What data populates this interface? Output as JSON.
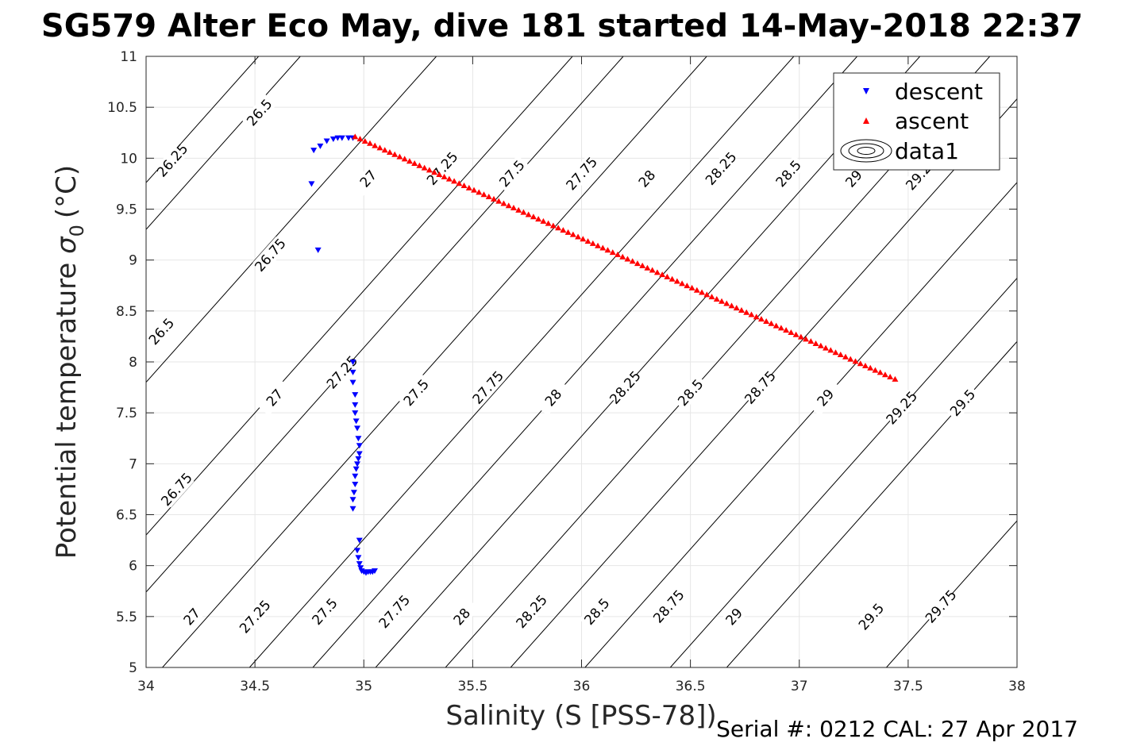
{
  "chart_data": {
    "type": "scatter",
    "title": "SG579 Alter Eco May, dive 181 started 14-May-2018 22:37",
    "xlabel": "Salinity (S [PSS-78])",
    "ylabel": "Potential temperature",
    "ylabel_symbol": "σ",
    "ylabel_subscript": "0",
    "ylabel_unit": "(°C)",
    "xlim": [
      34,
      38
    ],
    "ylim": [
      5,
      11
    ],
    "x_ticks": [
      "34",
      "34.5",
      "35",
      "35.5",
      "36",
      "36.5",
      "37",
      "37.5",
      "38"
    ],
    "y_ticks": [
      "5",
      "5.5",
      "6",
      "6.5",
      "7",
      "7.5",
      "8",
      "8.5",
      "9",
      "9.5",
      "10",
      "10.5",
      "11"
    ],
    "grid": true,
    "legend_position": "top-right",
    "legend": [
      "descent",
      "ascent",
      "data1"
    ],
    "footer": "Serial #: 0212  CAL: 27 Apr 2017",
    "colors": {
      "descent": "#0000ff",
      "ascent": "#ff0000",
      "contour": "#000000",
      "grid": "#e6e6e6"
    },
    "contours": [
      {
        "label": "26.25",
        "anchor": [
          34.1,
          10.0
        ],
        "labels_at": [
          [
            34.12,
            9.98
          ]
        ]
      },
      {
        "label": "26.5",
        "anchor": [
          34.5,
          10.5
        ],
        "labels_at": [
          [
            34.52,
            10.45
          ],
          [
            34.07,
            8.3
          ]
        ]
      },
      {
        "label": "26.75",
        "anchor": [
          34.5,
          9.0
        ],
        "labels_at": [
          [
            34.57,
            9.05
          ],
          [
            34.14,
            6.75
          ]
        ]
      },
      {
        "label": "27",
        "anchor": [
          34.5,
          7.5
        ],
        "labels_at": [
          [
            35.02,
            9.8
          ],
          [
            34.59,
            7.65
          ],
          [
            34.21,
            5.5
          ]
        ]
      },
      {
        "label": "27.25",
        "anchor": [
          34.9,
          7.9
        ],
        "labels_at": [
          [
            35.36,
            9.9
          ],
          [
            34.9,
            7.9
          ],
          [
            34.5,
            5.5
          ]
        ]
      },
      {
        "label": "27.5",
        "anchor": [
          35.2,
          7.7
        ],
        "labels_at": [
          [
            35.68,
            9.85
          ],
          [
            35.24,
            7.7
          ],
          [
            34.82,
            5.55
          ]
        ]
      },
      {
        "label": "27.75",
        "anchor": [
          35.6,
          7.7
        ],
        "labels_at": [
          [
            36.0,
            9.85
          ],
          [
            35.57,
            7.75
          ],
          [
            35.14,
            5.55
          ]
        ]
      },
      {
        "label": "28",
        "anchor": [
          35.87,
          7.65
        ],
        "labels_at": [
          [
            36.3,
            9.8
          ],
          [
            35.87,
            7.65
          ],
          [
            35.45,
            5.5
          ]
        ]
      },
      {
        "label": "28.25",
        "anchor": [
          36.2,
          7.75
        ],
        "labels_at": [
          [
            36.64,
            9.9
          ],
          [
            36.2,
            7.75
          ],
          [
            35.77,
            5.55
          ]
        ]
      },
      {
        "label": "28.5",
        "anchor": [
          36.5,
          7.7
        ],
        "labels_at": [
          [
            36.95,
            9.85
          ],
          [
            36.5,
            7.7
          ],
          [
            36.07,
            5.55
          ]
        ]
      },
      {
        "label": "28.75",
        "anchor": [
          36.82,
          7.75
        ],
        "labels_at": [
          [
            36.82,
            7.75
          ],
          [
            36.4,
            5.6
          ]
        ]
      },
      {
        "label": "29",
        "anchor": [
          37.12,
          7.65
        ],
        "labels_at": [
          [
            37.25,
            9.8
          ],
          [
            37.12,
            7.65
          ],
          [
            36.7,
            5.5
          ]
        ]
      },
      {
        "label": "29.25",
        "anchor": [
          37.47,
          7.55
        ],
        "labels_at": [
          [
            37.56,
            9.85
          ],
          [
            37.47,
            7.55
          ]
        ]
      },
      {
        "label": "29.5",
        "anchor": [
          37.75,
          7.6
        ],
        "labels_at": [
          [
            37.75,
            7.6
          ],
          [
            37.33,
            5.5
          ]
        ]
      },
      {
        "label": "29.75",
        "anchor": [
          37.65,
          5.6
        ],
        "labels_at": [
          [
            37.65,
            5.6
          ]
        ]
      }
    ],
    "series": [
      {
        "name": "descent",
        "marker": "triangle-down",
        "x": [
          34.95,
          34.93,
          34.9,
          34.88,
          34.86,
          34.83,
          34.8,
          34.77,
          34.76,
          34.79,
          34.95,
          34.95,
          34.95,
          34.96,
          34.96,
          34.96,
          34.965,
          34.97,
          34.975,
          34.98,
          34.98,
          34.975,
          34.97,
          34.965,
          34.96,
          34.96,
          34.955,
          34.95,
          34.95,
          34.98,
          34.97,
          34.975,
          34.98,
          34.985,
          34.99,
          35.0,
          35.01,
          35.02,
          35.03,
          35.04,
          35.05
        ],
        "y": [
          10.2,
          10.2,
          10.2,
          10.2,
          10.19,
          10.17,
          10.12,
          10.08,
          9.75,
          9.1,
          8.0,
          7.9,
          7.8,
          7.68,
          7.58,
          7.5,
          7.42,
          7.35,
          7.25,
          7.18,
          7.1,
          7.05,
          7.0,
          6.95,
          6.88,
          6.8,
          6.72,
          6.65,
          6.56,
          6.25,
          6.15,
          6.08,
          6.02,
          5.98,
          5.95,
          5.94,
          5.93,
          5.94,
          5.94,
          5.94,
          5.95
        ]
      },
      {
        "name": "ascent",
        "marker": "triangle-up",
        "x": [
          34.96,
          37.44
        ],
        "y": [
          10.21,
          7.83
        ],
        "count": 110
      }
    ]
  }
}
